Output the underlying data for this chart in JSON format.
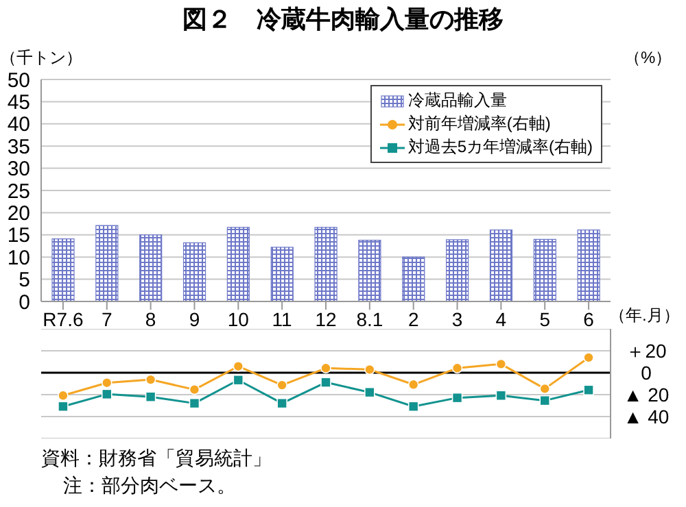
{
  "chart_data": [
    {
      "type": "bar",
      "title": "図２　冷蔵牛肉輸入量の推移",
      "ylabel": "（千トン）",
      "xlabel": "（年.月）",
      "categories": [
        "R7.6",
        "7",
        "8",
        "9",
        "10",
        "11",
        "12",
        "8.1",
        "2",
        "3",
        "4",
        "5",
        "6"
      ],
      "series": [
        {
          "name": "冷蔵品輸入量",
          "color": "#6e78c8",
          "values": [
            14.1,
            17.1,
            15.0,
            13.2,
            16.7,
            12.2,
            16.7,
            13.8,
            10.0,
            13.9,
            16.1,
            14.0,
            16.1
          ]
        }
      ],
      "ylim": [
        0,
        50
      ],
      "yticks": [
        0,
        5,
        10,
        15,
        20,
        25,
        30,
        35,
        40,
        45,
        50
      ],
      "grid": "y",
      "legend": "top right",
      "annotations": [
        "（%）",
        "資料：財務省「貿易統計」",
        "注：部分肉ベース。"
      ]
    },
    {
      "type": "line",
      "categories": [
        null,
        null,
        null,
        null,
        null,
        null,
        null,
        null,
        null,
        null,
        null,
        null,
        null
      ],
      "series": [
        {
          "name": "対前年増減率(右軸)",
          "marker": "circle",
          "color": "#f5a623",
          "values": [
            -20.8,
            -9.2,
            -6.3,
            -15.4,
            5.8,
            -11.3,
            4.2,
            2.9,
            -10.8,
            4.2,
            7.9,
            -14.6,
            13.8
          ]
        },
        {
          "name": "対過去5カ年増減率(右軸)",
          "marker": "square",
          "color": "#12938f",
          "values": [
            -30.8,
            -19.6,
            -22.0,
            -27.9,
            -6.7,
            -27.9,
            -8.8,
            -17.9,
            -30.8,
            -22.9,
            -20.8,
            -25.4,
            -15.8
          ]
        }
      ],
      "ylim": [
        -60,
        40
      ],
      "yticks": [
        {
          "value": 40,
          "label": null
        },
        {
          "value": 20,
          "label": "＋20"
        },
        0,
        {
          "value": -20,
          "label": "▲ 20"
        },
        {
          "value": -40,
          "label": "▲ 40"
        },
        {
          "value": -60,
          "label": null
        }
      ],
      "ref_lines": [
        {
          "axis": "y",
          "value": 0,
          "color": "#000000"
        }
      ],
      "tick_labels": "y",
      "grid": "y",
      "legend": "top right"
    }
  ]
}
